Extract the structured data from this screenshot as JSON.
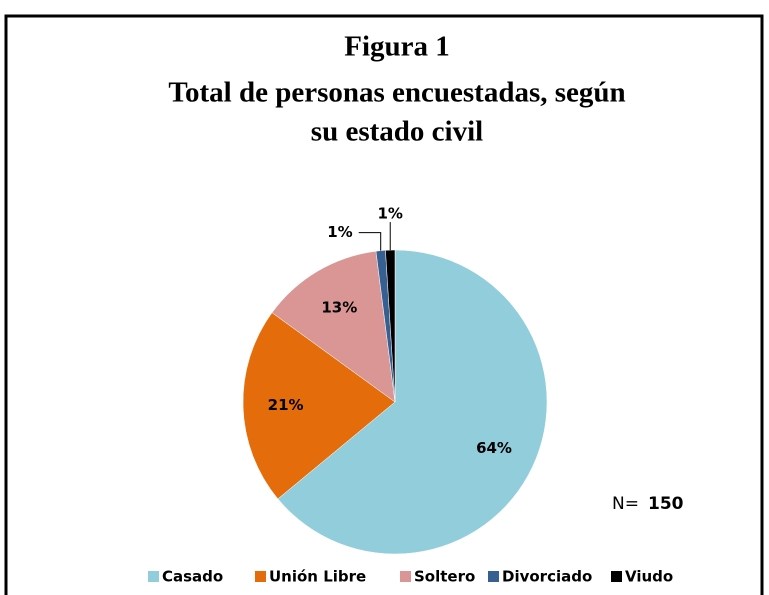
{
  "chart_data": {
    "type": "pie",
    "title": [
      "Figura 1",
      "Total de personas encuestadas, según",
      "su estado civil"
    ],
    "categories": [
      "Casado",
      "Unión Libre",
      "Soltero",
      "Divorciado",
      "Viudo"
    ],
    "values": [
      64,
      21,
      13,
      1,
      1
    ],
    "value_labels": [
      "64%",
      "21%",
      "13%",
      "1%",
      "1%"
    ],
    "colors": [
      "#92cddc",
      "#e46c0a",
      "#d99694",
      "#376092",
      "#000000"
    ],
    "legend": "bottom",
    "annotation": {
      "label": "N=",
      "value": 150
    }
  }
}
